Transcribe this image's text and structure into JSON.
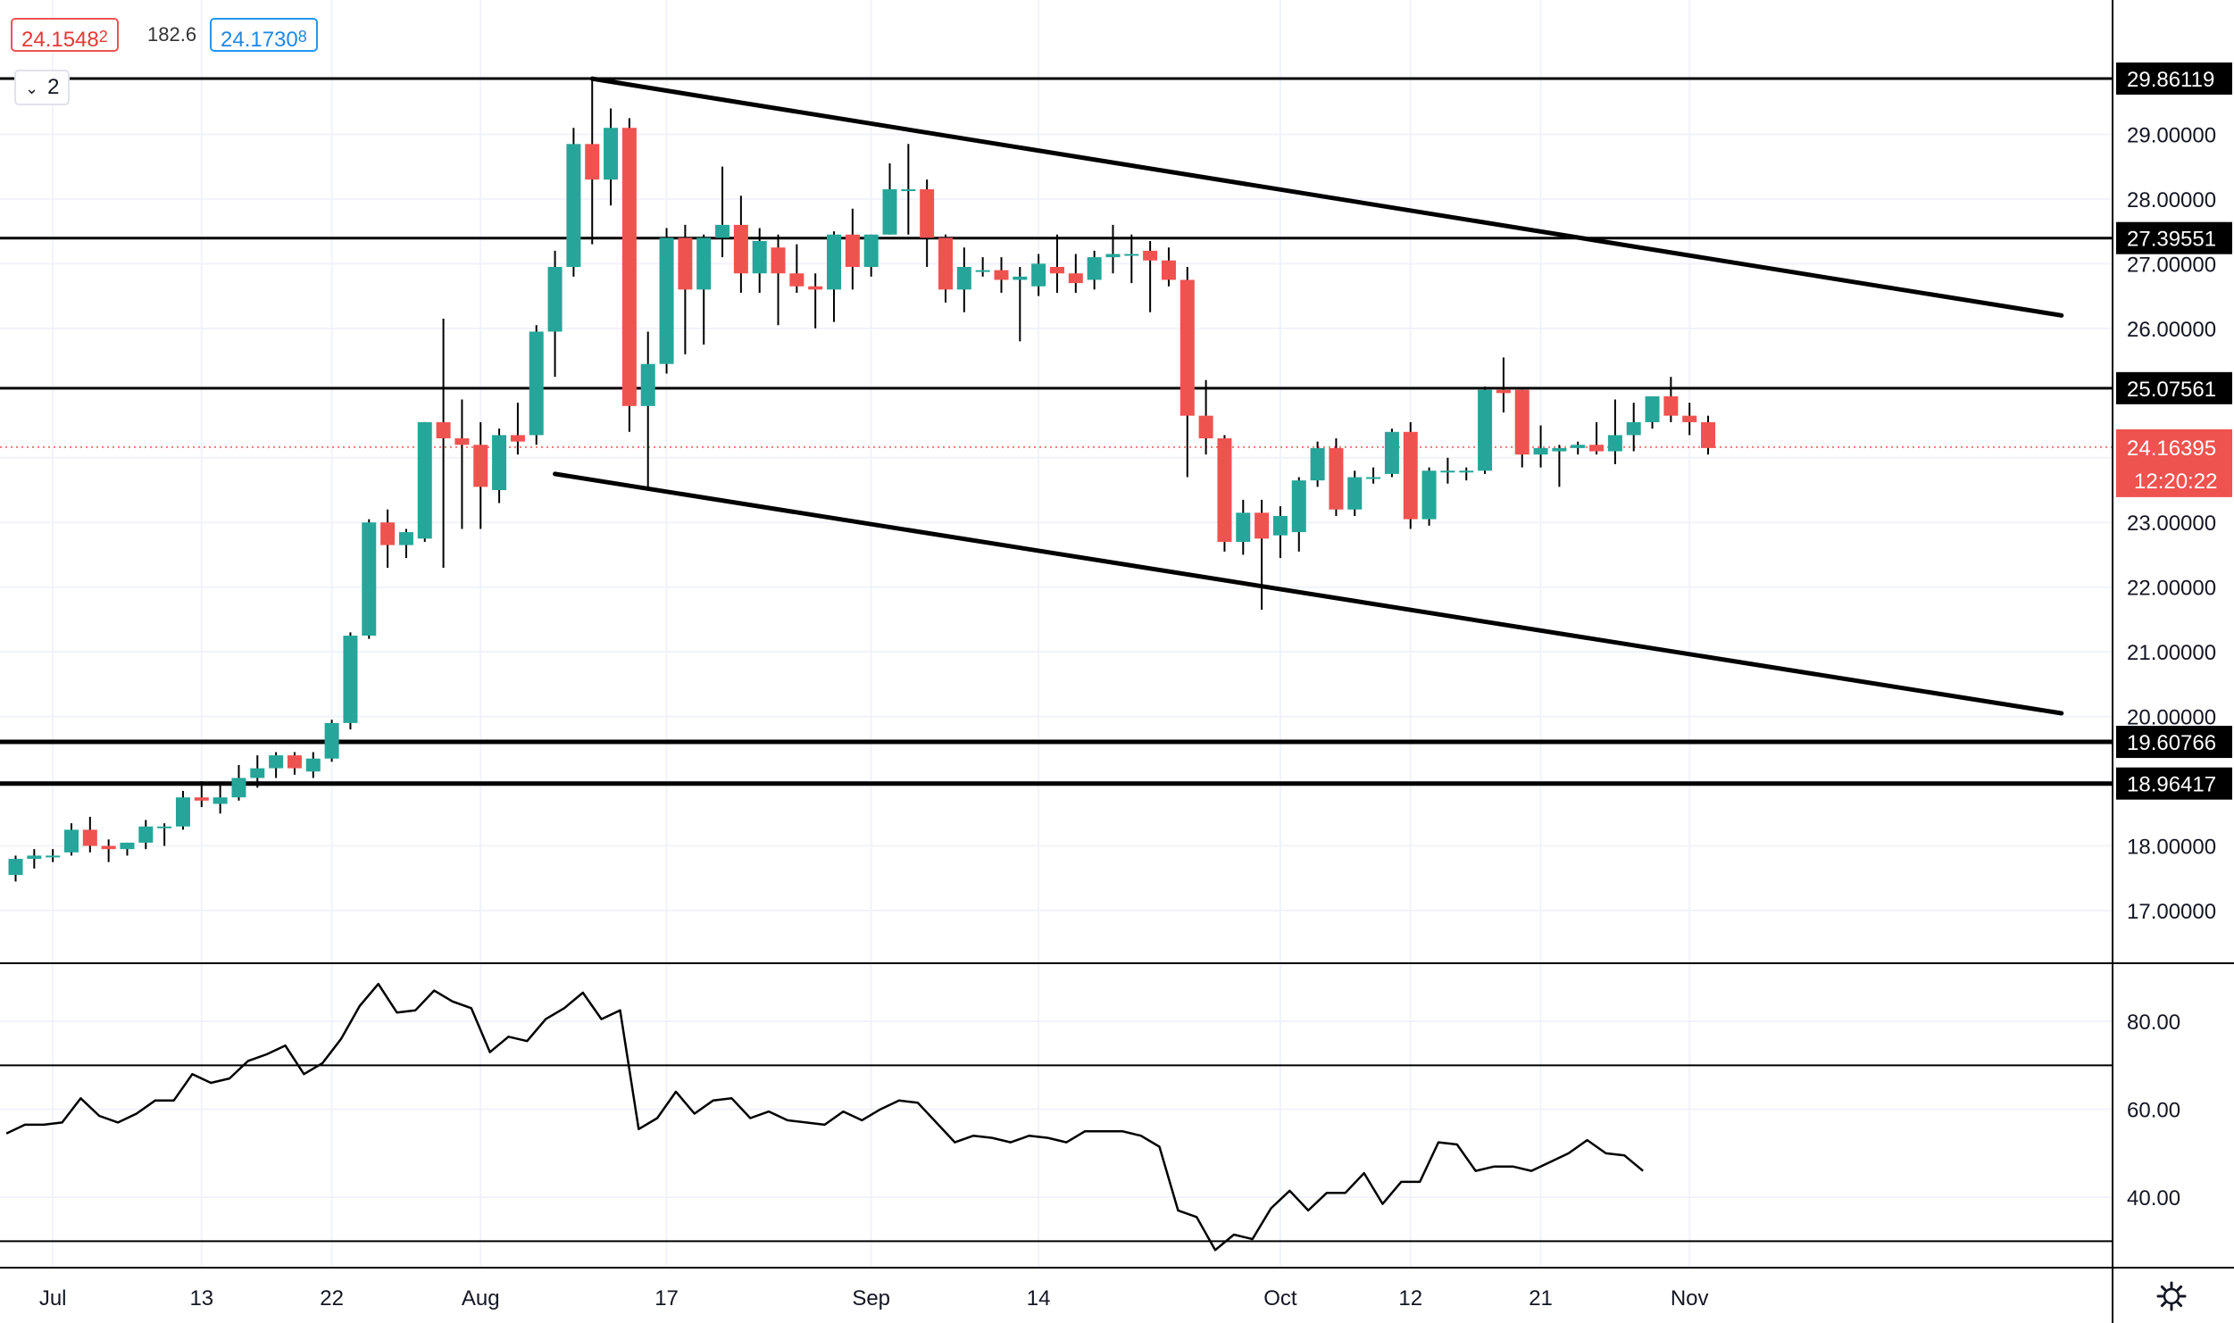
{
  "quote": {
    "bid": "24.1548",
    "bid_digit": "2",
    "spread": "182.6",
    "ask": "24.1730",
    "ask_digit": "8"
  },
  "interval_button": {
    "label": "2",
    "icon": "chevron-down-icon"
  },
  "settings_icon": "gear-icon",
  "colors": {
    "up": "#26a69a",
    "down": "#ef5350",
    "line": "#000000",
    "grid": "#f0f3fa",
    "axis_text": "#131722"
  },
  "chart_data": [
    {
      "type": "candlestick",
      "title": "",
      "x_tick_labels": [
        {
          "label": "Jul",
          "date": "2020-07-01"
        },
        {
          "label": "13",
          "date": "2020-07-13"
        },
        {
          "label": "22",
          "date": "2020-07-22"
        },
        {
          "label": "Aug",
          "date": "2020-08-03"
        },
        {
          "label": "17",
          "date": "2020-08-17"
        },
        {
          "label": "Sep",
          "date": "2020-09-01"
        },
        {
          "label": "14",
          "date": "2020-09-14"
        },
        {
          "label": "Oct",
          "date": "2020-10-01"
        },
        {
          "label": "12",
          "date": "2020-10-12"
        },
        {
          "label": "21",
          "date": "2020-10-21"
        },
        {
          "label": "Nov",
          "date": "2020-11-02"
        }
      ],
      "y_tick_labels": [
        "29.00000",
        "28.00000",
        "27.00000",
        "26.00000",
        "23.00000",
        "22.00000",
        "21.00000",
        "20.00000",
        "18.00000",
        "17.00000"
      ],
      "ylim": [
        16.2,
        30.8
      ],
      "candles": [
        [
          "2020-06-29",
          17.55,
          17.85,
          17.45,
          17.8
        ],
        [
          "2020-06-30",
          17.8,
          17.95,
          17.65,
          17.85
        ],
        [
          "2020-07-01",
          17.85,
          17.95,
          17.75,
          17.85
        ],
        [
          "2020-07-02",
          17.9,
          18.35,
          17.85,
          18.25
        ],
        [
          "2020-07-03",
          18.25,
          18.45,
          17.9,
          18.0
        ],
        [
          "2020-07-06",
          18.0,
          18.1,
          17.75,
          17.95
        ],
        [
          "2020-07-07",
          17.95,
          18.05,
          17.85,
          18.05
        ],
        [
          "2020-07-08",
          18.05,
          18.4,
          17.95,
          18.3
        ],
        [
          "2020-07-09",
          18.3,
          18.35,
          18.0,
          18.3
        ],
        [
          "2020-07-10",
          18.3,
          18.85,
          18.25,
          18.75
        ],
        [
          "2020-07-13",
          18.75,
          19.0,
          18.6,
          18.7
        ],
        [
          "2020-07-14",
          18.65,
          18.95,
          18.5,
          18.75
        ],
        [
          "2020-07-15",
          18.75,
          19.25,
          18.7,
          19.05
        ],
        [
          "2020-07-16",
          19.05,
          19.4,
          18.9,
          19.2
        ],
        [
          "2020-07-17",
          19.2,
          19.45,
          19.05,
          19.4
        ],
        [
          "2020-07-20",
          19.4,
          19.45,
          19.1,
          19.2
        ],
        [
          "2020-07-21",
          19.15,
          19.45,
          19.05,
          19.35
        ],
        [
          "2020-07-22",
          19.35,
          19.95,
          19.3,
          19.9
        ],
        [
          "2020-07-23",
          19.9,
          21.3,
          19.8,
          21.25
        ],
        [
          "2020-07-24",
          21.25,
          23.05,
          21.2,
          23.0
        ],
        [
          "2020-07-27",
          23.0,
          23.2,
          22.3,
          22.65
        ],
        [
          "2020-07-28",
          22.65,
          22.9,
          22.45,
          22.85
        ],
        [
          "2020-07-29",
          22.75,
          24.55,
          22.7,
          24.55
        ],
        [
          "2020-07-30",
          24.55,
          26.15,
          22.3,
          24.3
        ],
        [
          "2020-07-31",
          24.3,
          24.9,
          22.9,
          24.2
        ],
        [
          "2020-08-03",
          24.2,
          24.55,
          22.9,
          23.55
        ],
        [
          "2020-08-04",
          23.5,
          24.45,
          23.3,
          24.35
        ],
        [
          "2020-08-05",
          24.35,
          24.85,
          24.05,
          24.25
        ],
        [
          "2020-08-06",
          24.35,
          26.05,
          24.2,
          25.95
        ],
        [
          "2020-08-07",
          25.95,
          27.2,
          25.25,
          26.95
        ],
        [
          "2020-08-10",
          26.95,
          29.1,
          26.8,
          28.85
        ],
        [
          "2020-08-11",
          28.85,
          29.85,
          27.3,
          28.3
        ],
        [
          "2020-08-12",
          28.3,
          29.4,
          27.9,
          29.1
        ],
        [
          "2020-08-13",
          29.1,
          29.25,
          24.4,
          24.8
        ],
        [
          "2020-08-14",
          24.8,
          25.95,
          23.5,
          25.45
        ],
        [
          "2020-08-17",
          25.45,
          27.55,
          25.3,
          27.4
        ],
        [
          "2020-08-18",
          27.4,
          27.6,
          25.6,
          26.6
        ],
        [
          "2020-08-19",
          26.6,
          27.45,
          25.75,
          27.4
        ],
        [
          "2020-08-20",
          27.4,
          28.5,
          27.1,
          27.6
        ],
        [
          "2020-08-21",
          27.6,
          28.05,
          26.55,
          26.85
        ],
        [
          "2020-08-24",
          26.85,
          27.55,
          26.55,
          27.35
        ],
        [
          "2020-08-25",
          27.25,
          27.45,
          26.05,
          26.85
        ],
        [
          "2020-08-26",
          26.85,
          27.3,
          26.55,
          26.65
        ],
        [
          "2020-08-27",
          26.65,
          26.85,
          26.0,
          26.6
        ],
        [
          "2020-08-28",
          26.6,
          27.5,
          26.1,
          27.45
        ],
        [
          "2020-08-31",
          27.45,
          27.85,
          26.6,
          26.95
        ],
        [
          "2020-09-01",
          26.95,
          27.45,
          26.8,
          27.45
        ],
        [
          "2020-09-02",
          27.45,
          28.55,
          27.45,
          28.15
        ],
        [
          "2020-09-03",
          28.15,
          28.85,
          27.45,
          28.15
        ],
        [
          "2020-09-04",
          28.15,
          28.3,
          26.95,
          27.4
        ],
        [
          "2020-09-07",
          27.4,
          27.45,
          26.4,
          26.6
        ],
        [
          "2020-09-08",
          26.6,
          27.25,
          26.25,
          26.95
        ],
        [
          "2020-09-09",
          26.9,
          27.1,
          26.8,
          26.9
        ],
        [
          "2020-09-10",
          26.9,
          27.1,
          26.55,
          26.75
        ],
        [
          "2020-09-11",
          26.75,
          26.95,
          25.8,
          26.8
        ],
        [
          "2020-09-14",
          26.65,
          27.15,
          26.5,
          27.0
        ],
        [
          "2020-09-15",
          26.95,
          27.45,
          26.55,
          26.85
        ],
        [
          "2020-09-16",
          26.85,
          27.15,
          26.55,
          26.7
        ],
        [
          "2020-09-17",
          26.75,
          27.2,
          26.6,
          27.1
        ],
        [
          "2020-09-18",
          27.1,
          27.6,
          26.85,
          27.15
        ],
        [
          "2020-09-21",
          27.15,
          27.45,
          26.7,
          27.15
        ],
        [
          "2020-09-22",
          27.2,
          27.35,
          26.25,
          27.05
        ],
        [
          "2020-09-23",
          27.05,
          27.25,
          26.65,
          26.75
        ],
        [
          "2020-09-24",
          26.75,
          26.95,
          23.7,
          24.65
        ],
        [
          "2020-09-25",
          24.65,
          25.2,
          24.05,
          24.3
        ],
        [
          "2020-09-28",
          24.3,
          24.35,
          22.55,
          22.7
        ],
        [
          "2020-09-29",
          22.7,
          23.35,
          22.5,
          23.15
        ],
        [
          "2020-09-30",
          23.15,
          23.35,
          21.65,
          22.75
        ],
        [
          "2020-10-01",
          22.8,
          23.25,
          22.45,
          23.1
        ],
        [
          "2020-10-02",
          22.85,
          23.7,
          22.55,
          23.65
        ],
        [
          "2020-10-05",
          23.65,
          24.25,
          23.55,
          24.15
        ],
        [
          "2020-10-06",
          24.15,
          24.3,
          23.1,
          23.2
        ],
        [
          "2020-10-07",
          23.2,
          23.8,
          23.1,
          23.7
        ],
        [
          "2020-10-08",
          23.7,
          23.85,
          23.6,
          23.7
        ],
        [
          "2020-10-09",
          23.75,
          24.45,
          23.7,
          24.4
        ],
        [
          "2020-10-12",
          24.4,
          24.55,
          22.9,
          23.05
        ],
        [
          "2020-10-13",
          23.05,
          23.85,
          22.95,
          23.8
        ],
        [
          "2020-10-14",
          23.8,
          24.0,
          23.6,
          23.8
        ],
        [
          "2020-10-15",
          23.8,
          23.85,
          23.65,
          23.8
        ],
        [
          "2020-10-16",
          23.8,
          25.1,
          23.75,
          25.05
        ],
        [
          "2020-10-19",
          25.05,
          25.55,
          24.7,
          25.0
        ],
        [
          "2020-10-20",
          25.05,
          25.05,
          23.85,
          24.05
        ],
        [
          "2020-10-21",
          24.05,
          24.5,
          23.85,
          24.15
        ],
        [
          "2020-10-22",
          24.1,
          24.2,
          23.55,
          24.15
        ],
        [
          "2020-10-23",
          24.15,
          24.25,
          24.05,
          24.2
        ],
        [
          "2020-10-26",
          24.2,
          24.55,
          24.05,
          24.1
        ],
        [
          "2020-10-27",
          24.1,
          24.9,
          23.9,
          24.35
        ],
        [
          "2020-10-28",
          24.35,
          24.85,
          24.1,
          24.55
        ],
        [
          "2020-10-29",
          24.55,
          24.95,
          24.45,
          24.95
        ],
        [
          "2020-10-30",
          24.95,
          25.25,
          24.55,
          24.65
        ],
        [
          "2020-11-02",
          24.65,
          24.85,
          24.35,
          24.55
        ],
        [
          "2020-11-03",
          24.55,
          24.65,
          24.05,
          24.15
        ]
      ],
      "horizontal_levels": [
        {
          "value": 29.86119,
          "label": "29.86119",
          "width": 3
        },
        {
          "value": 27.39551,
          "label": "27.39551",
          "width": 3
        },
        {
          "value": 25.07561,
          "label": "25.07561",
          "width": 3
        },
        {
          "value": 19.60766,
          "label": "19.60766",
          "width": 5
        },
        {
          "value": 18.96417,
          "label": "18.96417",
          "width": 5
        }
      ],
      "trendlines": [
        {
          "from": [
            "2020-08-11",
            29.86
          ],
          "to": [
            "2020-11-30",
            26.2
          ]
        },
        {
          "from": [
            "2020-08-07",
            23.75
          ],
          "to": [
            "2020-11-30",
            20.05
          ]
        }
      ],
      "current_price": {
        "value": 24.16395,
        "label": "24.16395",
        "countdown": "12:20:22",
        "color": "#ef5350"
      }
    },
    {
      "type": "line",
      "title": "",
      "y_tick_labels": [
        "80.00",
        "60.00",
        "40.00"
      ],
      "ylim": [
        24,
        93
      ],
      "reference_lines": [
        70,
        30
      ],
      "series": [
        {
          "values": [
            54.5,
            56.5,
            56.5,
            57,
            62.5,
            58.5,
            57,
            59,
            62,
            62,
            68,
            66,
            67,
            71,
            72.5,
            74.5,
            68,
            70.5,
            76,
            83.5,
            88.5,
            82,
            82.5,
            87,
            84.5,
            83,
            73,
            76.5,
            75.5,
            80.5,
            83,
            86.5,
            80.5,
            82.5,
            55.5,
            58,
            64,
            59,
            62,
            62.5,
            58,
            59.5,
            57.5,
            57,
            56.5,
            59.5,
            57.5,
            60,
            62,
            61.5,
            57,
            52.5,
            54,
            53.5,
            52.5,
            54,
            53.5,
            52.5,
            55,
            55,
            55,
            54,
            51.5,
            37,
            35.5,
            28,
            31.5,
            30.5,
            37.5,
            41.5,
            37,
            41,
            41,
            45.5,
            38.5,
            43.5,
            43.5,
            52.5,
            52,
            46,
            47,
            47,
            46,
            48,
            50,
            53,
            50,
            49.5,
            46
          ]
        }
      ]
    }
  ]
}
